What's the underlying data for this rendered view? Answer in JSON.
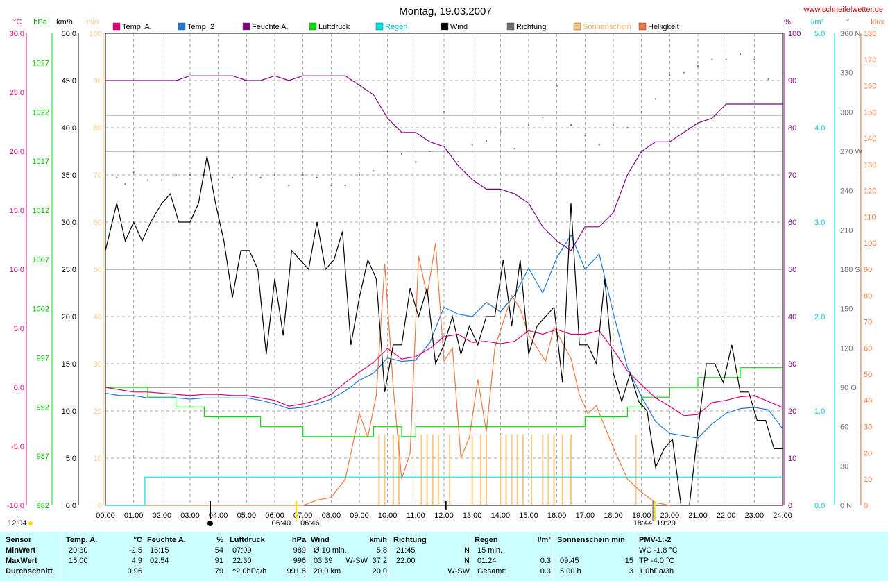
{
  "header": {
    "title": "Montag, 19.03.2007",
    "site": "www.schneifelwetter.de"
  },
  "colors": {
    "temp_a": "#e0007a",
    "temp_2": "#1e78dc",
    "feuchte": "#800080",
    "luftdruck": "#00dc00",
    "regen": "#00e0e0",
    "wind": "#000000",
    "richtung": "#707070",
    "sonne": "#ffc880",
    "helligkeit": "#f07840",
    "stats_bg": "#ccffff"
  },
  "axis_units": {
    "temp": "°C",
    "pressure": "hPa",
    "wind": "km/h",
    "sun": "min",
    "hum": "%",
    "rain": "l/m²",
    "dir": "°",
    "lux": "klux"
  },
  "legend": [
    {
      "key": "temp_a",
      "label": "Temp. A."
    },
    {
      "key": "temp_2",
      "label": "Temp. 2"
    },
    {
      "key": "feuchte",
      "label": "Feuchte A."
    },
    {
      "key": "luftdruck",
      "label": "Luftdruck"
    },
    {
      "key": "regen",
      "label": "Regen"
    },
    {
      "key": "wind",
      "label": "Wind"
    },
    {
      "key": "richtung",
      "label": "Richtung"
    },
    {
      "key": "sonne",
      "label": "Sonnenschein"
    },
    {
      "key": "helligkeit",
      "label": "Helligkeit"
    }
  ],
  "sun_events": {
    "noon": "12:04",
    "sunrise": "06:40",
    "sunrise_civil": "06:46",
    "sunset": "18:44",
    "sunset_civil": "19:29"
  },
  "chart_data": {
    "type": "line",
    "xlabel": "",
    "x_range": [
      0,
      24
    ],
    "x_ticks": [
      "00:00",
      "01:00",
      "02:00",
      "03:00",
      "04:00",
      "05:00",
      "06:00",
      "07:00",
      "08:00",
      "09:00",
      "10:00",
      "11:00",
      "12:00",
      "13:00",
      "14:00",
      "15:00",
      "16:00",
      "17:00",
      "18:00",
      "19:00",
      "20:00",
      "21:00",
      "22:00",
      "23:00",
      "24:00"
    ],
    "axes": {
      "temp": {
        "range": [
          -10,
          30
        ],
        "ticks": [
          "30.0",
          "25.0",
          "20.0",
          "15.0",
          "10.0",
          "5.0",
          "0.0",
          "-5.0",
          "-10.0"
        ]
      },
      "pressure": {
        "range": [
          982,
          1030
        ],
        "ticks": [
          "1027",
          "1022",
          "1017",
          "1012",
          "1007",
          "1002",
          "997",
          "992",
          "987",
          "982"
        ]
      },
      "wind": {
        "range": [
          0,
          50
        ],
        "ticks": [
          "50.0",
          "45.0",
          "40.0",
          "35.0",
          "30.0",
          "25.0",
          "20.0",
          "15.0",
          "10.0",
          "5.0",
          "0.0"
        ]
      },
      "sun": {
        "range": [
          0,
          100
        ],
        "ticks": [
          "100",
          "90",
          "80",
          "70",
          "60",
          "50",
          "40",
          "30",
          "20",
          "10",
          "0"
        ]
      },
      "hum": {
        "range": [
          0,
          100
        ],
        "ticks": [
          "100",
          "90",
          "80",
          "70",
          "60",
          "50",
          "40",
          "30",
          "20",
          "10",
          "0"
        ]
      },
      "rain": {
        "range": [
          0,
          5
        ],
        "ticks": [
          "5.0",
          "4.0",
          "3.0",
          "2.0",
          "1.0",
          "0.0"
        ]
      },
      "dir": {
        "range": [
          0,
          360
        ],
        "ticks": [
          "360 N",
          "330",
          "300",
          "270 W",
          "240",
          "210",
          "180 S",
          "150",
          "120",
          "90 O",
          "60",
          "30",
          "0 N"
        ]
      },
      "lux": {
        "range": [
          0,
          180
        ],
        "ticks": [
          "180",
          "170",
          "160",
          "150",
          "140",
          "130",
          "120",
          "110",
          "100",
          "90",
          "80",
          "70",
          "60",
          "50",
          "40",
          "30",
          "20",
          "10",
          "0"
        ]
      }
    },
    "series": [
      {
        "key": "temp_a",
        "name": "Temp. A.",
        "axis": "temp",
        "x": [
          0,
          0.5,
          1,
          1.5,
          2,
          2.5,
          3,
          3.5,
          4,
          4.5,
          5,
          5.5,
          6,
          6.5,
          7,
          7.5,
          8,
          8.5,
          9,
          9.5,
          10,
          10.5,
          11,
          11.5,
          12,
          12.5,
          13,
          13.5,
          14,
          14.5,
          15,
          15.5,
          16,
          16.5,
          17,
          17.5,
          18,
          18.5,
          19,
          19.5,
          20,
          20.5,
          21,
          21.5,
          22,
          22.5,
          23,
          23.5,
          24
        ],
        "y": [
          0,
          -0.2,
          -0.4,
          -0.4,
          -0.5,
          -0.6,
          -0.7,
          -0.6,
          -0.6,
          -0.7,
          -0.7,
          -0.9,
          -1.1,
          -1.6,
          -1.4,
          -1.1,
          -0.6,
          0.4,
          1.3,
          2.1,
          3.3,
          2.4,
          2.6,
          3.3,
          4.3,
          4.5,
          3.8,
          3.9,
          3.7,
          3.9,
          4.8,
          4.5,
          4.9,
          4.5,
          4.5,
          4.8,
          3.2,
          1.4,
          0.2,
          -0.9,
          -1.6,
          -2.4,
          -2.3,
          -1.3,
          -1.1,
          -0.8,
          -0.7,
          -1.2,
          -1.7
        ]
      },
      {
        "key": "temp_2",
        "name": "Temp. 2",
        "axis": "temp",
        "x": [
          0,
          0.5,
          1,
          1.5,
          2,
          2.5,
          3,
          3.5,
          4,
          4.5,
          5,
          5.5,
          6,
          6.5,
          7,
          7.5,
          8,
          8.5,
          9,
          9.5,
          10,
          10.5,
          11,
          11.5,
          12,
          12.5,
          13,
          13.5,
          14,
          14.5,
          15,
          15.5,
          16,
          16.5,
          17,
          17.5,
          18,
          18.5,
          19,
          19.5,
          20,
          20.5,
          21,
          21.5,
          22,
          22.5,
          23,
          23.5,
          24
        ],
        "y": [
          -0.5,
          -0.7,
          -0.7,
          -0.9,
          -0.9,
          -0.9,
          -1.0,
          -0.9,
          -0.9,
          -0.9,
          -0.9,
          -1.1,
          -1.4,
          -1.8,
          -1.7,
          -1.4,
          -1.0,
          -0.3,
          0.6,
          1.2,
          2.5,
          2.2,
          2.3,
          3.8,
          6.8,
          6.2,
          6.0,
          7.2,
          6.4,
          7.8,
          10.1,
          8.0,
          11.0,
          12.9,
          10.0,
          11.3,
          6.3,
          1.7,
          -0.8,
          -2.9,
          -3.9,
          -4.1,
          -4.3,
          -3.1,
          -2.2,
          -1.8,
          -1.7,
          -1.9,
          -3.5
        ]
      },
      {
        "key": "feuchte",
        "name": "Feuchte A.",
        "axis": "hum",
        "x": [
          0,
          0.5,
          1,
          1.5,
          2,
          2.5,
          3,
          3.5,
          4,
          4.5,
          5,
          5.5,
          6,
          6.5,
          7,
          7.5,
          8,
          8.5,
          9,
          9.5,
          10,
          10.5,
          11,
          11.5,
          12,
          12.5,
          13,
          13.5,
          14,
          14.5,
          15,
          15.5,
          16,
          16.5,
          17,
          17.5,
          18,
          18.5,
          19,
          19.5,
          20,
          20.5,
          21,
          21.5,
          22,
          22.5,
          23,
          23.5,
          24
        ],
        "y": [
          90,
          90,
          90,
          90,
          90,
          90,
          91,
          91,
          91,
          91,
          90,
          90,
          91,
          90,
          91,
          91,
          91,
          91,
          89,
          87,
          82,
          79,
          79,
          77,
          76,
          72,
          69,
          67,
          67,
          66,
          64,
          59,
          56,
          54,
          59,
          59,
          62,
          70,
          75,
          77,
          77,
          79,
          81,
          82,
          85,
          85,
          85,
          85,
          85
        ]
      },
      {
        "key": "luftdruck",
        "name": "Luftdruck",
        "axis": "pressure",
        "x": [
          0,
          1,
          1.5,
          2.5,
          3.5,
          4.5,
          5.5,
          6.5,
          7,
          7.5,
          8,
          8.5,
          9,
          9.5,
          10,
          10.5,
          11,
          11.5,
          12,
          13,
          14,
          15,
          15.5,
          16,
          16.5,
          17,
          17.5,
          18,
          18.5,
          19,
          19.5,
          20,
          20.5,
          21,
          21.5,
          22,
          22.5,
          23,
          23.5,
          24
        ],
        "y": [
          994,
          994,
          993,
          992,
          991,
          991,
          990,
          990,
          989,
          989,
          989,
          989,
          989,
          990,
          990,
          989,
          990,
          990,
          990,
          990,
          990,
          990,
          990,
          990,
          990,
          991,
          991,
          991,
          992,
          993,
          993,
          994,
          994,
          995,
          995,
          995,
          996,
          996,
          996,
          996
        ]
      },
      {
        "key": "wind",
        "name": "Wind",
        "axis": "wind",
        "x": [
          0,
          0.4,
          0.7,
          1,
          1.3,
          1.6,
          2,
          2.3,
          2.6,
          3,
          3.3,
          3.6,
          3.9,
          4.2,
          4.5,
          4.8,
          5.1,
          5.4,
          5.7,
          6,
          6.3,
          6.6,
          6.9,
          7.2,
          7.5,
          7.8,
          8.1,
          8.4,
          8.7,
          9,
          9.3,
          9.6,
          9.9,
          10.2,
          10.5,
          10.8,
          11.1,
          11.4,
          11.7,
          12,
          12.3,
          12.6,
          12.9,
          13.2,
          13.5,
          13.8,
          14.1,
          14.4,
          14.7,
          15,
          15.3,
          15.6,
          15.9,
          16.2,
          16.5,
          16.8,
          17.1,
          17.4,
          17.7,
          18,
          18.3,
          18.6,
          18.9,
          19.2,
          19.5,
          19.8,
          20.1,
          20.4,
          20.7,
          21,
          21.3,
          21.6,
          21.9,
          22.2,
          22.5,
          22.8,
          23.1,
          23.4,
          23.7,
          24
        ],
        "y": [
          27,
          32,
          28,
          30,
          28,
          30,
          32,
          33,
          30,
          30,
          32,
          37,
          32,
          28,
          22,
          27,
          27,
          25,
          16,
          24,
          18,
          27,
          26,
          25,
          30,
          25,
          26,
          29,
          17,
          22,
          26,
          24,
          12,
          17,
          17,
          23,
          20,
          23,
          15,
          17,
          20,
          16,
          19,
          17,
          20,
          20,
          26,
          19,
          26,
          16,
          19,
          20,
          21,
          13,
          32,
          17,
          17,
          15,
          24,
          14,
          11,
          14,
          11,
          10,
          4,
          6,
          7,
          0,
          0,
          8,
          15,
          15,
          13,
          17,
          12,
          12,
          9,
          9,
          6,
          6
        ]
      },
      {
        "key": "helligkeit",
        "name": "Helligkeit",
        "axis": "lux",
        "x": [
          0,
          6.5,
          7,
          7.5,
          8,
          8.5,
          9,
          9.3,
          9.6,
          9.9,
          10.2,
          10.5,
          10.8,
          11.1,
          11.4,
          11.7,
          12,
          12.3,
          12.6,
          12.9,
          13.2,
          13.5,
          13.8,
          14.1,
          14.4,
          14.7,
          15,
          15.3,
          15.6,
          15.9,
          16.2,
          16.5,
          16.8,
          17.1,
          17.4,
          17.7,
          18,
          18.5,
          19,
          19.5,
          20
        ],
        "y": [
          0,
          0,
          0,
          2,
          3,
          10,
          35,
          26,
          42,
          92,
          45,
          10,
          20,
          95,
          80,
          100,
          55,
          60,
          18,
          26,
          48,
          28,
          60,
          70,
          80,
          75,
          65,
          60,
          55,
          68,
          62,
          56,
          42,
          35,
          38,
          30,
          22,
          10,
          5,
          1,
          0
        ]
      },
      {
        "key": "regen",
        "name": "Regen",
        "axis": "rain",
        "x": [
          0,
          1.2,
          1.4,
          24
        ],
        "y": [
          0,
          0,
          0.3,
          0.3
        ]
      }
    ],
    "richtung_points": [
      [
        0.4,
        250
      ],
      [
        0.7,
        245
      ],
      [
        1,
        254
      ],
      [
        1.5,
        248
      ],
      [
        2,
        248
      ],
      [
        2.5,
        252
      ],
      [
        3,
        252
      ],
      [
        3.5,
        252
      ],
      [
        4,
        248
      ],
      [
        4.5,
        250
      ],
      [
        5,
        248
      ],
      [
        5.5,
        250
      ],
      [
        6,
        252
      ],
      [
        6.5,
        244
      ],
      [
        7,
        252
      ],
      [
        7.5,
        250
      ],
      [
        8,
        244
      ],
      [
        8.5,
        244
      ],
      [
        9,
        252
      ],
      [
        9.5,
        255
      ],
      [
        10,
        270
      ],
      [
        10.5,
        268
      ],
      [
        11,
        262
      ],
      [
        11.5,
        270
      ],
      [
        12,
        300
      ],
      [
        12.5,
        262
      ],
      [
        13,
        275
      ],
      [
        13.5,
        278
      ],
      [
        14,
        285
      ],
      [
        14.5,
        272
      ],
      [
        15,
        290
      ],
      [
        15.5,
        296
      ],
      [
        16,
        320
      ],
      [
        16.5,
        290
      ],
      [
        17,
        282
      ],
      [
        17.5,
        275
      ],
      [
        18,
        290
      ],
      [
        18.5,
        288
      ],
      [
        19,
        300
      ],
      [
        19.5,
        310
      ],
      [
        20,
        328
      ],
      [
        20.5,
        330
      ],
      [
        21,
        335
      ],
      [
        21.5,
        340
      ],
      [
        22,
        340
      ],
      [
        22.5,
        344
      ],
      [
        23,
        340
      ],
      [
        23.5,
        325
      ],
      [
        24,
        330
      ]
    ],
    "sunshine_bars": [
      9.7,
      9.9,
      10.2,
      10.4,
      11.2,
      11.4,
      11.6,
      11.8,
      12.2,
      13,
      13.3,
      13.5,
      14,
      14.2,
      14.4,
      14.6,
      14.8,
      15.1,
      15.5,
      15.7,
      15.9,
      16.2,
      16.5,
      18.8
    ],
    "reference_lines": {
      "temp": 0,
      "hum": 85,
      "dir": [
        270,
        180,
        90
      ]
    }
  },
  "stats": {
    "columns": [
      {
        "name": "Sensor",
        "unit": "",
        "rows": [
          "MinWert",
          "MaxWert",
          "Durchschnitt"
        ]
      },
      {
        "name": "Temp. A.",
        "unit": "°C",
        "times": [
          "20:30",
          "15:00",
          ""
        ],
        "values": [
          "-2.5",
          "4.9",
          "0.96"
        ]
      },
      {
        "name": "Feuchte A.",
        "unit": "%",
        "times": [
          "16:15",
          "02:54",
          ""
        ],
        "values": [
          "54",
          "91",
          "79"
        ]
      },
      {
        "name": "Luftdruck",
        "unit": "hPa",
        "times": [
          "07:09",
          "22:30",
          "^2.0hPa/h"
        ],
        "values": [
          "989",
          "996",
          "991.8"
        ]
      },
      {
        "name": "Wind",
        "unit": "km/h",
        "times": [
          "Ø 10 min.",
          "03:39",
          "20,0 km"
        ],
        "mid": [
          "",
          "W-SW",
          ""
        ],
        "values": [
          "5.8",
          "37.2",
          "20.0"
        ]
      },
      {
        "name": "Richtung",
        "unit": "",
        "times": [
          "21:45",
          "22:00",
          ""
        ],
        "values": [
          "N",
          "N",
          "W-SW"
        ]
      },
      {
        "name": "Regen",
        "unit": "l/m²",
        "times": [
          "15 min.",
          "01:24",
          "Gesamt:"
        ],
        "values": [
          "",
          "0.3",
          "0.3"
        ]
      },
      {
        "name": "Sonnenschein min",
        "unit": "",
        "times": [
          "",
          "09:45",
          "5:00 h"
        ],
        "values": [
          "",
          "15",
          "3"
        ]
      },
      {
        "name": "PMV-1:-2",
        "unit": "",
        "times": [
          "WC -1.8 °C",
          "TP -4.0 °C",
          "1.0hPa/3h"
        ],
        "values": [
          "",
          "",
          ""
        ]
      }
    ]
  }
}
